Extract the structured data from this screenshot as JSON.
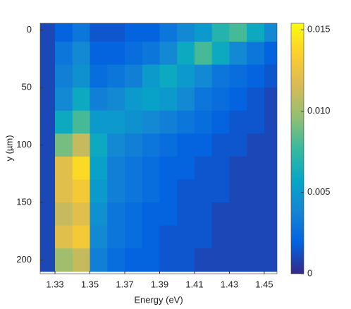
{
  "chart_data": {
    "type": "heatmap",
    "x_label": "Energy (eV)",
    "y_label": "y (µm)",
    "x": [
      1.325,
      1.335,
      1.345,
      1.355,
      1.365,
      1.375,
      1.385,
      1.395,
      1.405,
      1.415,
      1.425,
      1.435,
      1.445,
      1.455
    ],
    "y": [
      0,
      20,
      40,
      60,
      80,
      100,
      120,
      140,
      160,
      180,
      200
    ],
    "z": [
      [
        0.001,
        0.002,
        0.003,
        0.0015,
        0.0015,
        0.002,
        0.002,
        0.003,
        0.004,
        0.005,
        0.007,
        0.008,
        0.006,
        0.004
      ],
      [
        0.001,
        0.003,
        0.004,
        0.002,
        0.002,
        0.0025,
        0.003,
        0.004,
        0.006,
        0.008,
        0.006,
        0.004,
        0.003,
        0.002
      ],
      [
        0.001,
        0.0035,
        0.0045,
        0.0025,
        0.003,
        0.0035,
        0.005,
        0.006,
        0.005,
        0.004,
        0.003,
        0.0025,
        0.002,
        0.0015
      ],
      [
        0.001,
        0.004,
        0.006,
        0.0035,
        0.004,
        0.005,
        0.0055,
        0.005,
        0.004,
        0.003,
        0.0025,
        0.002,
        0.0015,
        0.001
      ],
      [
        0.001,
        0.006,
        0.008,
        0.005,
        0.005,
        0.0045,
        0.004,
        0.0035,
        0.003,
        0.0025,
        0.002,
        0.0015,
        0.0015,
        0.001
      ],
      [
        0.001,
        0.009,
        0.011,
        0.006,
        0.004,
        0.0035,
        0.003,
        0.0025,
        0.002,
        0.002,
        0.0015,
        0.0015,
        0.001,
        0.001
      ],
      [
        0.001,
        0.012,
        0.014,
        0.0055,
        0.0035,
        0.003,
        0.0025,
        0.002,
        0.002,
        0.0015,
        0.0015,
        0.001,
        0.001,
        0.001
      ],
      [
        0.001,
        0.012,
        0.013,
        0.005,
        0.0035,
        0.003,
        0.0025,
        0.002,
        0.0015,
        0.0015,
        0.0015,
        0.001,
        0.001,
        0.001
      ],
      [
        0.001,
        0.011,
        0.012,
        0.0045,
        0.003,
        0.0025,
        0.002,
        0.002,
        0.0015,
        0.0015,
        0.001,
        0.001,
        0.001,
        0.001
      ],
      [
        0.001,
        0.012,
        0.013,
        0.004,
        0.003,
        0.0025,
        0.002,
        0.0015,
        0.0015,
        0.0015,
        0.001,
        0.001,
        0.001,
        0.001
      ],
      [
        0.001,
        0.01,
        0.011,
        0.0035,
        0.0025,
        0.002,
        0.002,
        0.0015,
        0.0015,
        0.001,
        0.001,
        0.001,
        0.001,
        0.001
      ]
    ],
    "xlim": [
      1.3215,
      1.4573
    ],
    "xticks": [
      1.33,
      1.35,
      1.37,
      1.39,
      1.41,
      1.43,
      1.45
    ],
    "ylim": [
      212,
      -6
    ],
    "yticks": [
      0,
      50,
      100,
      150,
      200
    ],
    "zlim": [
      0,
      0.0154
    ],
    "zticks": [
      0,
      0.005,
      {
        "value": 0.01,
        "label": "0.010"
      },
      0.015
    ],
    "colormap": [
      "#352a87",
      "#0363e1",
      "#1485d4",
      "#06a7c6",
      "#38b99e",
      "#92bf73",
      "#d9ba56",
      "#fcce2e",
      "#f9fb0e"
    ]
  }
}
